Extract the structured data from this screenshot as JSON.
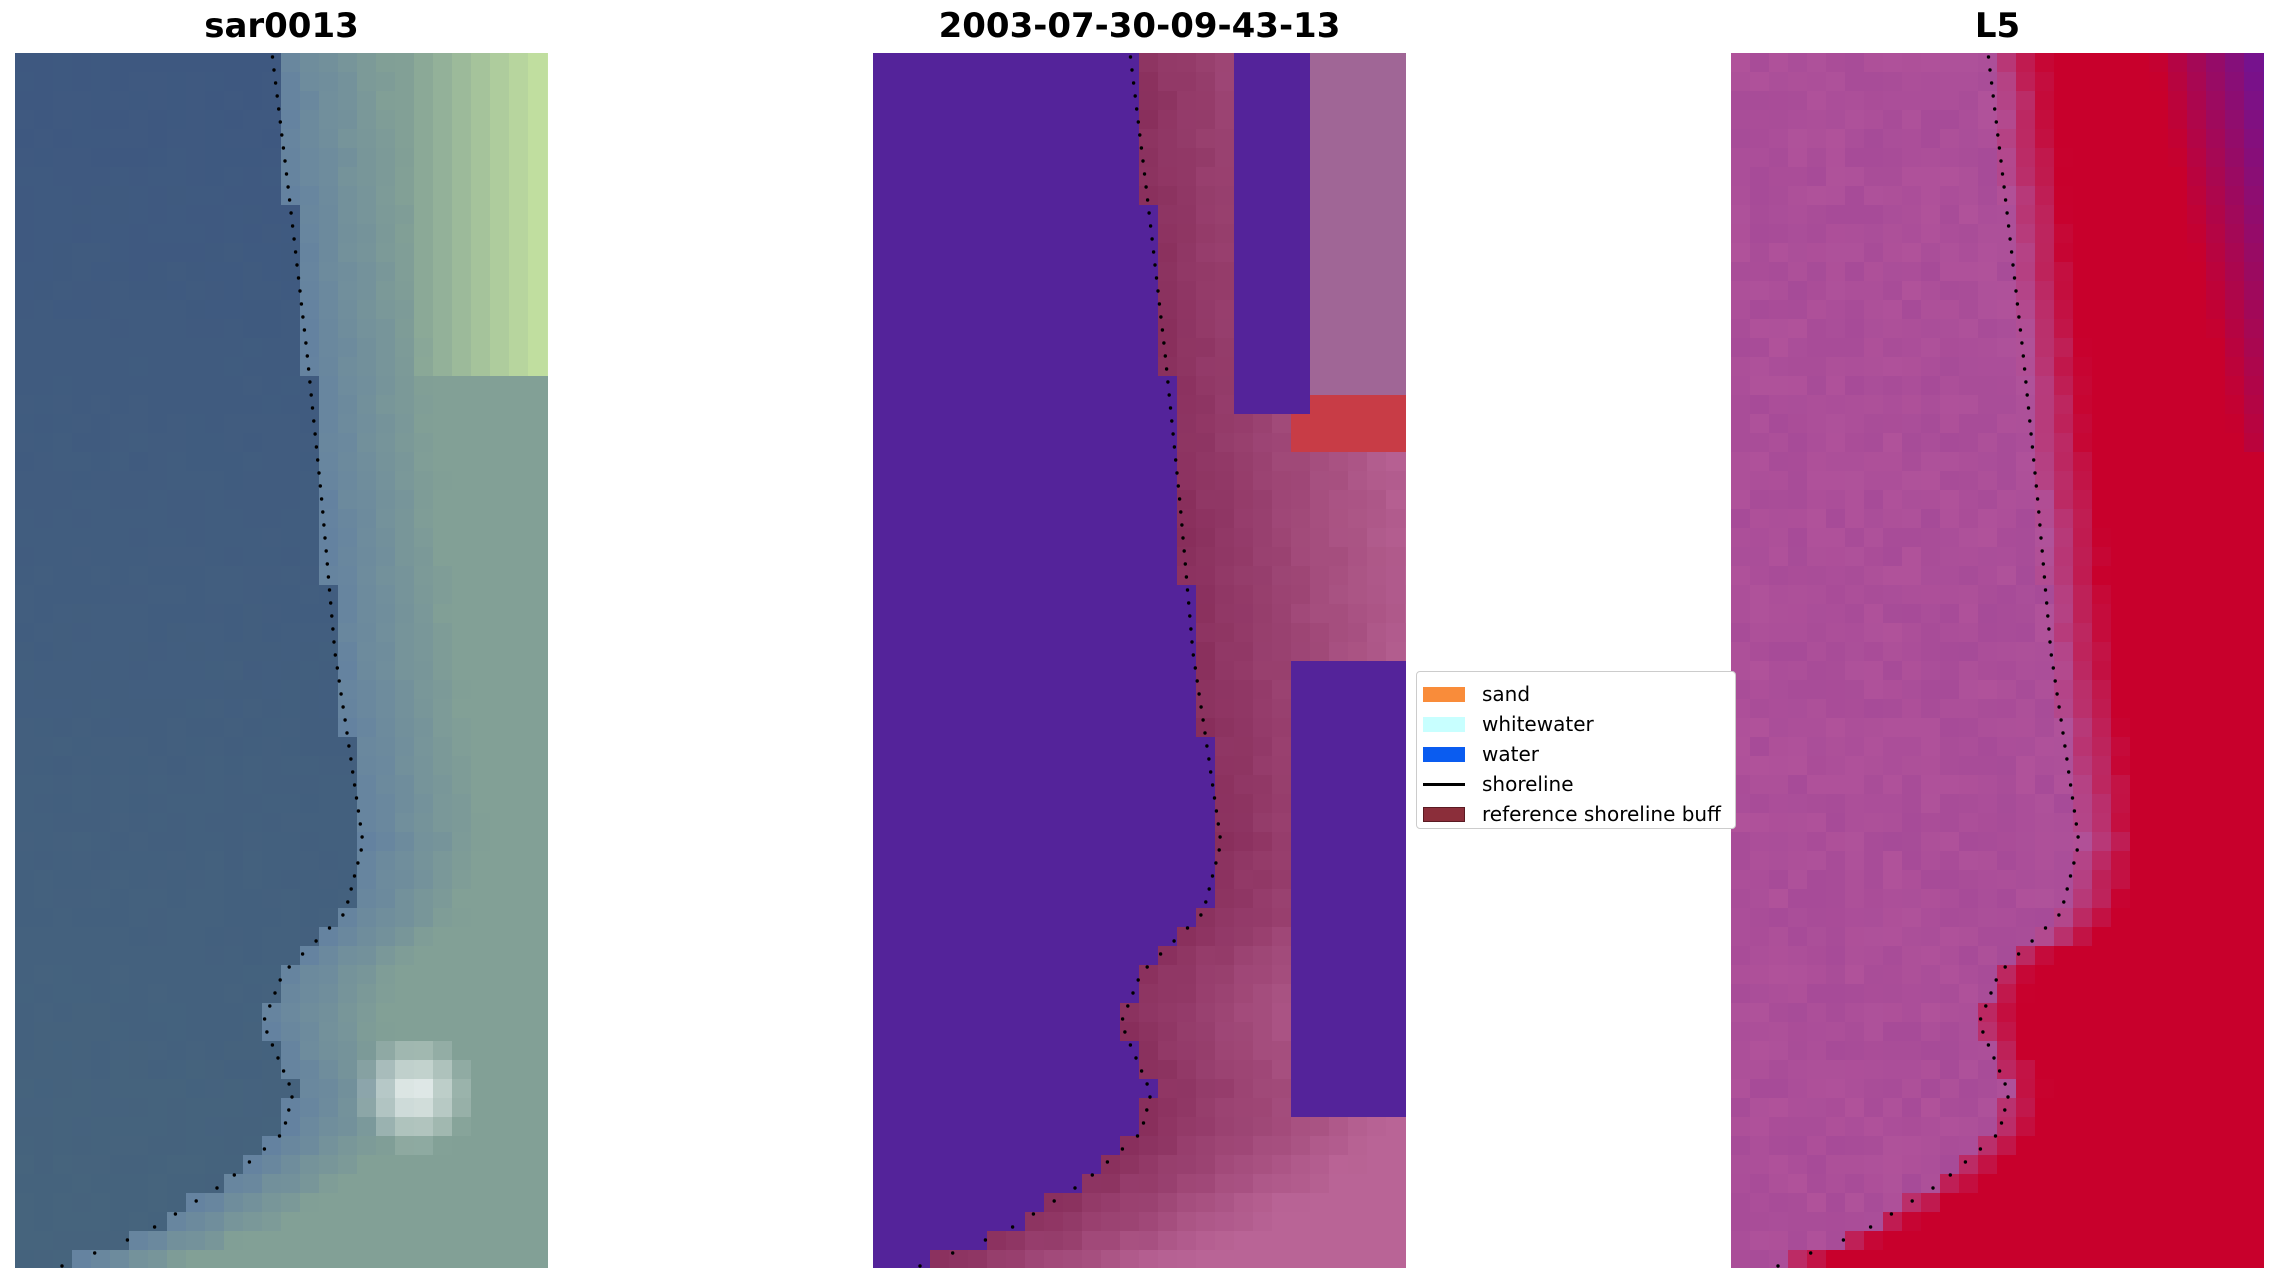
{
  "panels": [
    {
      "title": "sar0013",
      "style": "rgb"
    },
    {
      "title": "2003-07-30-09-43-13",
      "style": "classified"
    },
    {
      "title": "L5",
      "style": "index"
    }
  ],
  "legend": {
    "entries": [
      {
        "label": "sand",
        "kind": "patch",
        "color": "#f98c3a"
      },
      {
        "label": "whitewater",
        "kind": "patch",
        "color": "#c8ffff"
      },
      {
        "label": "water",
        "kind": "patch",
        "color": "#0a5cf0"
      },
      {
        "label": "shoreline",
        "kind": "line",
        "color": "#000000"
      },
      {
        "label": "reference shoreline buff",
        "kind": "patch",
        "color": "#8b2e3a"
      }
    ]
  },
  "colors": {
    "classified_water": "#54239a",
    "shoreline_dots": "#000000",
    "index_low": "#b0529a",
    "index_high": "#c8002c"
  }
}
